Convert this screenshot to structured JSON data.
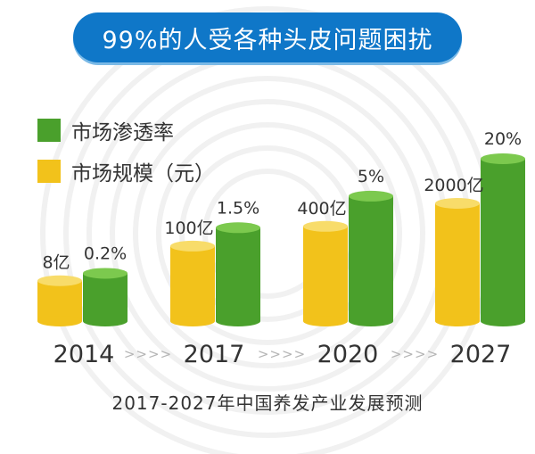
{
  "title": "99%的人受各种头皮问题困扰",
  "footer_caption": "2017-2027年中国养发产业发展预测",
  "arrow_glyph": ">>>>",
  "colors": {
    "green": "#4aa02c",
    "green_top": "#7cc94e",
    "yellow": "#f2c21b",
    "yellow_top": "#f8dc6a",
    "banner": "#0f77c8",
    "text": "#333333"
  },
  "chart_data": {
    "type": "bar",
    "title": "99%的人受各种头皮问题困扰",
    "categories": [
      "2014",
      "2017",
      "2020",
      "2027"
    ],
    "series": [
      {
        "name": "市场规模（元）",
        "values": [
          8,
          100,
          400,
          2000
        ],
        "labels": [
          "8亿",
          "100亿",
          "400亿",
          "2000亿"
        ],
        "color": "#f2c21b"
      },
      {
        "name": "市场渗透率",
        "values": [
          0.2,
          1.5,
          5,
          20
        ],
        "labels": [
          "0.2%",
          "1.5%",
          "5%",
          "20%"
        ],
        "color": "#4aa02c"
      }
    ],
    "legend": "top-left",
    "grid": false,
    "xlabel": "",
    "ylabel": ""
  }
}
